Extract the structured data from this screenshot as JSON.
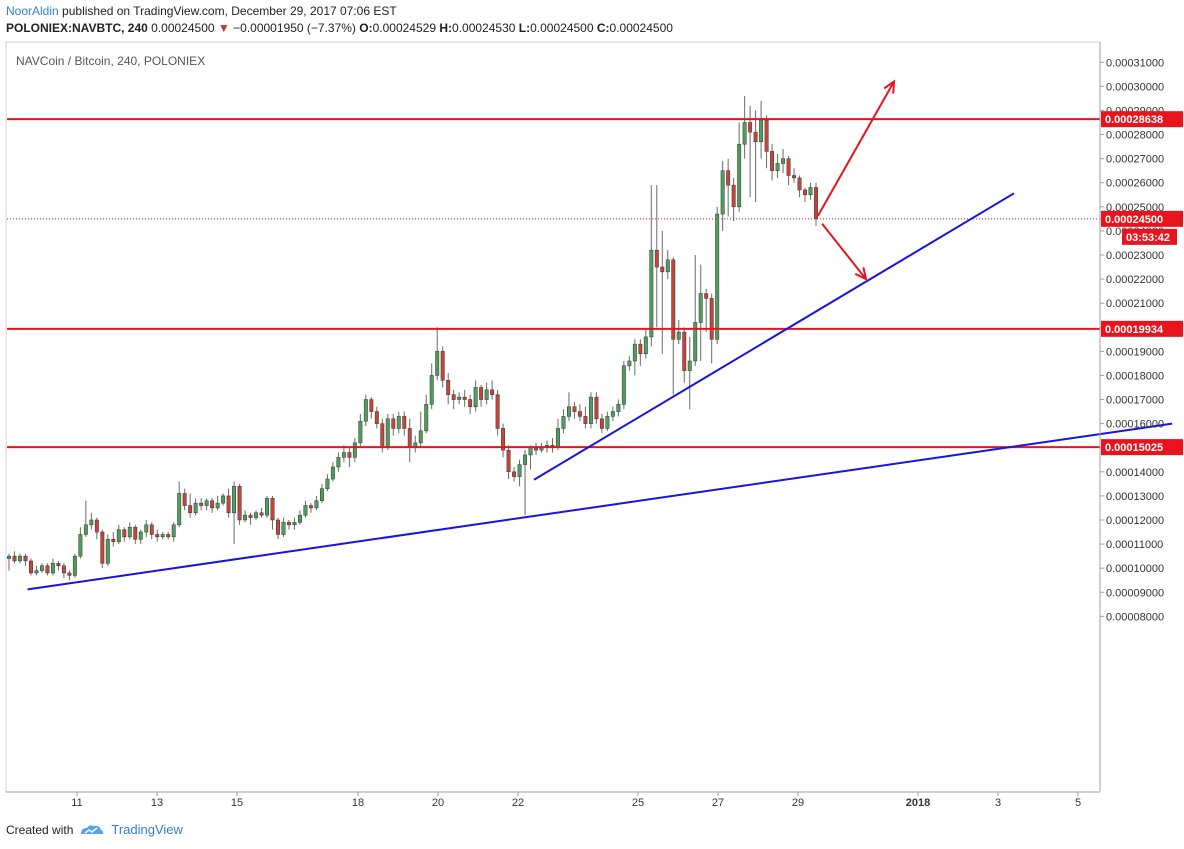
{
  "header": {
    "author": "NoorAldin",
    "published": "published on TradingView.com, December 29, 2017 07:06 EST",
    "symbol": "POLONIEX:NAVBTC, 240",
    "last": "0.00024500",
    "down_arrow": "▼",
    "change": "−0.00001950 (−7.37%)",
    "o_label": "O:",
    "o_value": "0.00024529",
    "h_label": "H:",
    "h_value": "0.00024530",
    "l_label": "L:",
    "l_value": "0.00024500",
    "c_label": "C:",
    "c_value": "0.00024500"
  },
  "footer": {
    "created_with": "Created with",
    "brand": "TradingView"
  },
  "chart_data": {
    "type": "candlestick",
    "title": "NAVCoin / Bitcoin, 240, POLONIEX",
    "ylim": [
      7.5e-06,
      0.000318
    ],
    "y_ticks": [
      "0.00031000",
      "0.00030000",
      "0.00029000",
      "0.00028000",
      "0.00027000",
      "0.00026000",
      "0.00025000",
      "0.00024000",
      "0.00023000",
      "0.00022000",
      "0.00021000",
      "0.00020000",
      "0.00019000",
      "0.00018000",
      "0.00017000",
      "0.00016000",
      "0.00015000",
      "0.00014000",
      "0.00013000",
      "0.00012000",
      "0.00011000",
      "0.00010000",
      "0.00009000",
      "0.00008000"
    ],
    "x_ticks": [
      {
        "label": "11",
        "day": 11
      },
      {
        "label": "13",
        "day": 13
      },
      {
        "label": "15",
        "day": 15
      },
      {
        "label": "18",
        "day": 18
      },
      {
        "label": "20",
        "day": 20
      },
      {
        "label": "22",
        "day": 22
      },
      {
        "label": "25",
        "day": 25
      },
      {
        "label": "27",
        "day": 27
      },
      {
        "label": "29",
        "day": 29
      },
      {
        "label": "2018",
        "day": 32
      },
      {
        "label": "3",
        "day": 34
      },
      {
        "label": "5",
        "day": 36
      }
    ],
    "x_axis_note": "days of December 2017 continuing into January 2018 (32 = Jan 1); the axis is time-compressed between 15 and 18",
    "horizontal_levels": [
      {
        "value": 0.00028638,
        "label": "0.00028638",
        "color": "#e8141d"
      },
      {
        "value": 0.00019934,
        "label": "0.00019934",
        "color": "#e8141d"
      },
      {
        "value": 0.00015025,
        "label": "0.00015025",
        "color": "#e8141d"
      }
    ],
    "last_price": {
      "value": 0.000245,
      "label": "0.00024500",
      "countdown": "03:53:42",
      "color": "#e8141d"
    },
    "trendlines": [
      {
        "from": [
          9.8,
          9.12e-05
        ],
        "to": [
          38.4,
          0.00016
        ],
        "color": "#1414e6"
      },
      {
        "from": [
          22.4,
          0.0001367
        ],
        "to": [
          34.4,
          0.0002556
        ],
        "color": "#1414e6"
      }
    ],
    "arrows": [
      {
        "from": [
          29.5,
          0.0002463
        ],
        "to": [
          31.4,
          0.000302
        ],
        "color": "#e8141d"
      },
      {
        "from": [
          29.6,
          0.000243
        ],
        "to": [
          30.7,
          0.00022
        ],
        "color": "#e8141d"
      }
    ],
    "colors": {
      "up": "#4f9e5d",
      "down": "#c6453b",
      "level": "#e8141d",
      "trend": "#1414e6"
    },
    "candles": [
      [
        0.000104,
        0.000105,
        9.9e-05,
        0.000106
      ],
      [
        0.000105,
        0.000103,
        0.000102,
        0.000107
      ],
      [
        0.000103,
        0.000105,
        0.000102,
        0.000106
      ],
      [
        0.000105,
        0.000103,
        0.000101,
        0.000106
      ],
      [
        0.000103,
        9.8e-05,
        9.7e-05,
        0.000104
      ],
      [
        9.8e-05,
        9.9e-05,
        9.7e-05,
        0.000101
      ],
      [
        9.9e-05,
        0.000101,
        9.8e-05,
        0.000102
      ],
      [
        0.000101,
        9.8e-05,
        9.7e-05,
        0.000102
      ],
      [
        9.8e-05,
        0.000102,
        9.7e-05,
        0.000104
      ],
      [
        0.000102,
        0.000101,
        9.9e-05,
        0.000103
      ],
      [
        0.000101,
        9.8e-05,
        9.6e-05,
        0.000102
      ],
      [
        9.8e-05,
        9.7e-05,
        9.5e-05,
        9.9e-05
      ],
      [
        9.7e-05,
        0.000105,
        9.6e-05,
        0.000106
      ],
      [
        0.000105,
        0.000114,
        0.000104,
        0.000117
      ],
      [
        0.000114,
        0.000118,
        0.000113,
        0.000128
      ],
      [
        0.000118,
        0.00012,
        0.000116,
        0.000123
      ],
      [
        0.00012,
        0.000115,
        0.000112,
        0.000121
      ],
      [
        0.000115,
        0.000102,
        0.0001,
        0.000116
      ],
      [
        0.000102,
        0.000112,
        0.000101,
        0.000114
      ],
      [
        0.000112,
        0.000111,
        0.000109,
        0.000115
      ],
      [
        0.000111,
        0.000116,
        0.00011,
        0.000118
      ],
      [
        0.000116,
        0.000113,
        0.000111,
        0.000117
      ],
      [
        0.000113,
        0.000117,
        0.000112,
        0.000119
      ],
      [
        0.000117,
        0.000112,
        0.00011,
        0.000118
      ],
      [
        0.000112,
        0.000115,
        0.00011,
        0.000116
      ],
      [
        0.000115,
        0.000118,
        0.000113,
        0.00012
      ],
      [
        0.000118,
        0.000114,
        0.000112,
        0.000119
      ],
      [
        0.000114,
        0.000113,
        0.000111,
        0.000116
      ],
      [
        0.000113,
        0.000114,
        0.000112,
        0.000115
      ],
      [
        0.000114,
        0.000113,
        0.000112,
        0.000115
      ],
      [
        0.000113,
        0.000118,
        0.000111,
        0.000119
      ],
      [
        0.000118,
        0.000131,
        0.000117,
        0.000136
      ],
      [
        0.000131,
        0.000126,
        0.000124,
        0.000133
      ],
      [
        0.000126,
        0.000123,
        0.000121,
        0.000131
      ],
      [
        0.000123,
        0.000127,
        0.000122,
        0.000129
      ],
      [
        0.000127,
        0.000126,
        0.000124,
        0.000129
      ],
      [
        0.000126,
        0.000128,
        0.000124,
        0.000129
      ],
      [
        0.000128,
        0.000125,
        0.000123,
        0.000129
      ],
      [
        0.000125,
        0.000127,
        0.000124,
        0.00013
      ],
      [
        0.000127,
        0.00013,
        0.000126,
        0.000131
      ],
      [
        0.00013,
        0.000123,
        0.000121,
        0.000133
      ],
      [
        0.000123,
        0.000134,
        0.00011,
        0.000136
      ],
      [
        0.000134,
        0.00012,
        0.000118,
        0.000135
      ],
      [
        0.00012,
        0.000122,
        0.000119,
        0.000124
      ],
      [
        0.000122,
        0.000121,
        0.000118,
        0.000123
      ],
      [
        0.000121,
        0.000123,
        0.00012,
        0.000124
      ],
      [
        0.000123,
        0.000122,
        0.000121,
        0.000125
      ],
      [
        0.000122,
        0.000129,
        0.000121,
        0.00013
      ],
      [
        0.000129,
        0.00012,
        0.000116,
        0.00013
      ],
      [
        0.00012,
        0.000114,
        0.000112,
        0.000121
      ],
      [
        0.000114,
        0.000119,
        0.000113,
        0.000121
      ],
      [
        0.000119,
        0.000118,
        0.000116,
        0.00012
      ],
      [
        0.000118,
        0.000119,
        0.000116,
        0.000121
      ],
      [
        0.000119,
        0.000122,
        0.000118,
        0.000124
      ],
      [
        0.000122,
        0.000126,
        0.000121,
        0.000128
      ],
      [
        0.000126,
        0.000125,
        0.000123,
        0.000127
      ],
      [
        0.000125,
        0.000128,
        0.000124,
        0.00013
      ],
      [
        0.000128,
        0.000133,
        0.000127,
        0.000135
      ],
      [
        0.000133,
        0.000137,
        0.000132,
        0.000139
      ],
      [
        0.000137,
        0.000142,
        0.000136,
        0.000144
      ],
      [
        0.000142,
        0.000146,
        0.00014,
        0.000148
      ],
      [
        0.000146,
        0.000148,
        0.000144,
        0.000151
      ],
      [
        0.000148,
        0.000146,
        0.000142,
        0.00015
      ],
      [
        0.000146,
        0.000152,
        0.000144,
        0.000154
      ],
      [
        0.000152,
        0.000161,
        0.00015,
        0.000164
      ],
      [
        0.000161,
        0.00017,
        0.000159,
        0.000172
      ],
      [
        0.00017,
        0.000165,
        0.000162,
        0.000171
      ],
      [
        0.000165,
        0.00016,
        0.000158,
        0.000167
      ],
      [
        0.00016,
        0.00015,
        0.000148,
        0.000162
      ],
      [
        0.00015,
        0.000162,
        0.000149,
        0.000164
      ],
      [
        0.000162,
        0.000158,
        0.000155,
        0.000164
      ],
      [
        0.000158,
        0.000163,
        0.000156,
        0.000165
      ],
      [
        0.000163,
        0.000158,
        0.000155,
        0.000165
      ],
      [
        0.000158,
        0.00015,
        0.000144,
        0.000162
      ],
      [
        0.00015,
        0.000152,
        0.000148,
        0.000155
      ],
      [
        0.000152,
        0.000157,
        0.00015,
        0.000165
      ],
      [
        0.000157,
        0.000168,
        0.000156,
        0.000172
      ],
      [
        0.000168,
        0.00018,
        0.000166,
        0.000185
      ],
      [
        0.00018,
        0.00019,
        0.000178,
        0.0002
      ],
      [
        0.00019,
        0.000178,
        0.000175,
        0.000192
      ],
      [
        0.000178,
        0.000172,
        0.000168,
        0.000181
      ],
      [
        0.000172,
        0.00017,
        0.000166,
        0.000174
      ],
      [
        0.00017,
        0.000171,
        0.000168,
        0.000173
      ],
      [
        0.000171,
        0.00017,
        0.000167,
        0.000174
      ],
      [
        0.00017,
        0.000167,
        0.000164,
        0.000172
      ],
      [
        0.000167,
        0.000175,
        0.000165,
        0.000178
      ],
      [
        0.000175,
        0.00017,
        0.000167,
        0.000176
      ],
      [
        0.00017,
        0.000174,
        0.000168,
        0.000177
      ],
      [
        0.000174,
        0.000172,
        0.00017,
        0.000178
      ],
      [
        0.000172,
        0.000158,
        0.000155,
        0.000174
      ],
      [
        0.000158,
        0.000149,
        0.000146,
        0.00016
      ],
      [
        0.000149,
        0.00014,
        0.000137,
        0.000151
      ],
      [
        0.00014,
        0.000138,
        0.000136,
        0.000142
      ],
      [
        0.000138,
        0.000143,
        0.000134,
        0.000145
      ],
      [
        0.000143,
        0.000147,
        0.000122,
        0.000149
      ],
      [
        0.000147,
        0.00015,
        0.000141,
        0.000151
      ],
      [
        0.00015,
        0.000149,
        0.000147,
        0.000152
      ],
      [
        0.000149,
        0.00015,
        0.000148,
        0.000152
      ],
      [
        0.00015,
        0.000151,
        0.000148,
        0.000153
      ],
      [
        0.000151,
        0.00015,
        0.000148,
        0.000154
      ],
      [
        0.00015,
        0.000158,
        0.000149,
        0.000162
      ],
      [
        0.000158,
        0.000163,
        0.000156,
        0.000166
      ],
      [
        0.000163,
        0.000167,
        0.000161,
        0.000173
      ],
      [
        0.000167,
        0.000165,
        0.000162,
        0.000169
      ],
      [
        0.000165,
        0.000163,
        0.000161,
        0.000168
      ],
      [
        0.000163,
        0.00016,
        0.000158,
        0.000167
      ],
      [
        0.00016,
        0.000171,
        0.000158,
        0.000173
      ],
      [
        0.000171,
        0.000162,
        0.00016,
        0.000173
      ],
      [
        0.000162,
        0.000158,
        0.000156,
        0.000164
      ],
      [
        0.000158,
        0.000163,
        0.000157,
        0.000165
      ],
      [
        0.000163,
        0.000165,
        0.000161,
        0.000167
      ],
      [
        0.000165,
        0.000168,
        0.000163,
        0.00017
      ],
      [
        0.000168,
        0.000184,
        0.000166,
        0.000186
      ],
      [
        0.000184,
        0.000186,
        0.000182,
        0.000188
      ],
      [
        0.000186,
        0.000193,
        0.00018,
        0.000195
      ],
      [
        0.000193,
        0.000189,
        0.000184,
        0.000195
      ],
      [
        0.000189,
        0.000196,
        0.000187,
        0.000199
      ],
      [
        0.000196,
        0.000232,
        0.000192,
        0.000259
      ],
      [
        0.000232,
        0.000225,
        0.0002,
        0.000259
      ],
      [
        0.000225,
        0.000223,
        0.000189,
        0.00024
      ],
      [
        0.000223,
        0.000228,
        0.00022,
        0.000232
      ],
      [
        0.000228,
        0.000195,
        0.000172,
        0.000229
      ],
      [
        0.000195,
        0.000198,
        0.000193,
        0.000203
      ],
      [
        0.000198,
        0.000182,
        0.000177,
        0.0002
      ],
      [
        0.000182,
        0.000186,
        0.000166,
        0.000196
      ],
      [
        0.000186,
        0.000202,
        0.000184,
        0.00023
      ],
      [
        0.000202,
        0.000214,
        0.000186,
        0.000226
      ],
      [
        0.000214,
        0.000212,
        0.000198,
        0.000216
      ],
      [
        0.000212,
        0.000195,
        0.000185,
        0.000214
      ],
      [
        0.000195,
        0.000247,
        0.000193,
        0.00025
      ],
      [
        0.000247,
        0.000265,
        0.00024,
        0.000269
      ],
      [
        0.000265,
        0.000259,
        0.000246,
        0.00027
      ],
      [
        0.000259,
        0.00025,
        0.000244,
        0.000262
      ],
      [
        0.00025,
        0.000276,
        0.000248,
        0.000285
      ],
      [
        0.000276,
        0.000285,
        0.00027,
        0.000296
      ],
      [
        0.000285,
        0.000281,
        0.000254,
        0.000292
      ],
      [
        0.000281,
        0.000277,
        0.000252,
        0.00029
      ],
      [
        0.000277,
        0.000286,
        0.00027,
        0.000294
      ],
      [
        0.000286,
        0.000273,
        0.000266,
        0.000288
      ],
      [
        0.000273,
        0.000265,
        0.000261,
        0.000276
      ],
      [
        0.000265,
        0.000268,
        0.000262,
        0.000272
      ],
      [
        0.000268,
        0.00027,
        0.000264,
        0.000274
      ],
      [
        0.00027,
        0.000263,
        0.000259,
        0.000271
      ],
      [
        0.000263,
        0.000262,
        0.00026,
        0.000266
      ],
      [
        0.000262,
        0.000257,
        0.000254,
        0.000263
      ],
      [
        0.000257,
        0.000255,
        0.000252,
        0.000258
      ],
      [
        0.000255,
        0.000258,
        0.000253,
        0.00026
      ],
      [
        0.000258,
        0.000245,
        0.000242,
        0.00026
      ]
    ]
  }
}
